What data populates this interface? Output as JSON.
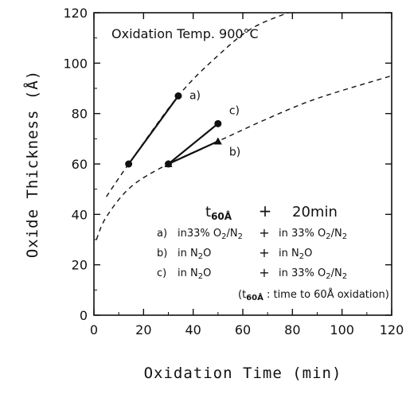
{
  "chart_data": {
    "type": "line",
    "title": "",
    "xlabel": "Oxidation Time (min)",
    "ylabel": "Oxide Thickness (Å)",
    "xlim": [
      0,
      120
    ],
    "ylim": [
      0,
      120
    ],
    "xticks": [
      0,
      20,
      40,
      60,
      80,
      100,
      120
    ],
    "yticks": [
      0,
      20,
      40,
      60,
      80,
      100,
      120
    ],
    "grid": false,
    "series": [
      {
        "label": "a)",
        "marker": "circle",
        "points": [
          {
            "x": 14,
            "y": 60
          },
          {
            "x": 34,
            "y": 87
          }
        ]
      },
      {
        "label": "b)",
        "marker": "triangle",
        "points": [
          {
            "x": 30,
            "y": 60
          },
          {
            "x": 50,
            "y": 69
          }
        ]
      },
      {
        "label": "c)",
        "marker": "circle",
        "points": [
          {
            "x": 30,
            "y": 60
          },
          {
            "x": 50,
            "y": 76
          }
        ]
      }
    ],
    "reference_curves": [
      {
        "style": "dashed",
        "points": [
          {
            "x": 5,
            "y": 47
          },
          {
            "x": 14,
            "y": 60
          },
          {
            "x": 34,
            "y": 87
          },
          {
            "x": 50,
            "y": 103
          },
          {
            "x": 64,
            "y": 114
          },
          {
            "x": 81,
            "y": 121
          }
        ]
      },
      {
        "style": "dashed",
        "points": [
          {
            "x": 1,
            "y": 30
          },
          {
            "x": 5,
            "y": 39
          },
          {
            "x": 15,
            "y": 51
          },
          {
            "x": 30,
            "y": 60
          },
          {
            "x": 50,
            "y": 69
          },
          {
            "x": 70,
            "y": 78
          },
          {
            "x": 90,
            "y": 86
          },
          {
            "x": 120,
            "y": 95
          }
        ]
      }
    ],
    "annotations": {
      "temp": "Oxidation Temp. 900°C",
      "header_t": "t",
      "header_sub": "60Å",
      "header_plus": "+",
      "header_time": "20min",
      "rows": [
        {
          "label": "a)",
          "first": "in33% O",
          "first_sub": "2",
          "first_tail": "/N",
          "first_sub2": "2",
          "second": "in 33% O",
          "second_sub": "2",
          "second_tail": "/N",
          "second_sub2": "2"
        },
        {
          "label": "b)",
          "first": "in N",
          "first_sub": "2",
          "first_tail": "O",
          "first_sub2": "",
          "second": "in N",
          "second_sub": "2",
          "second_tail": "O",
          "second_sub2": ""
        },
        {
          "label": "c)",
          "first": "in N",
          "first_sub": "2",
          "first_tail": "O",
          "first_sub2": "",
          "second": "in 33% O",
          "second_sub": "2",
          "second_tail": "/N",
          "second_sub2": "2"
        }
      ],
      "plus": "+",
      "note_open": "(t",
      "note_sub": "60Å",
      "note_text": " : time to 60Å oxidation)"
    }
  }
}
